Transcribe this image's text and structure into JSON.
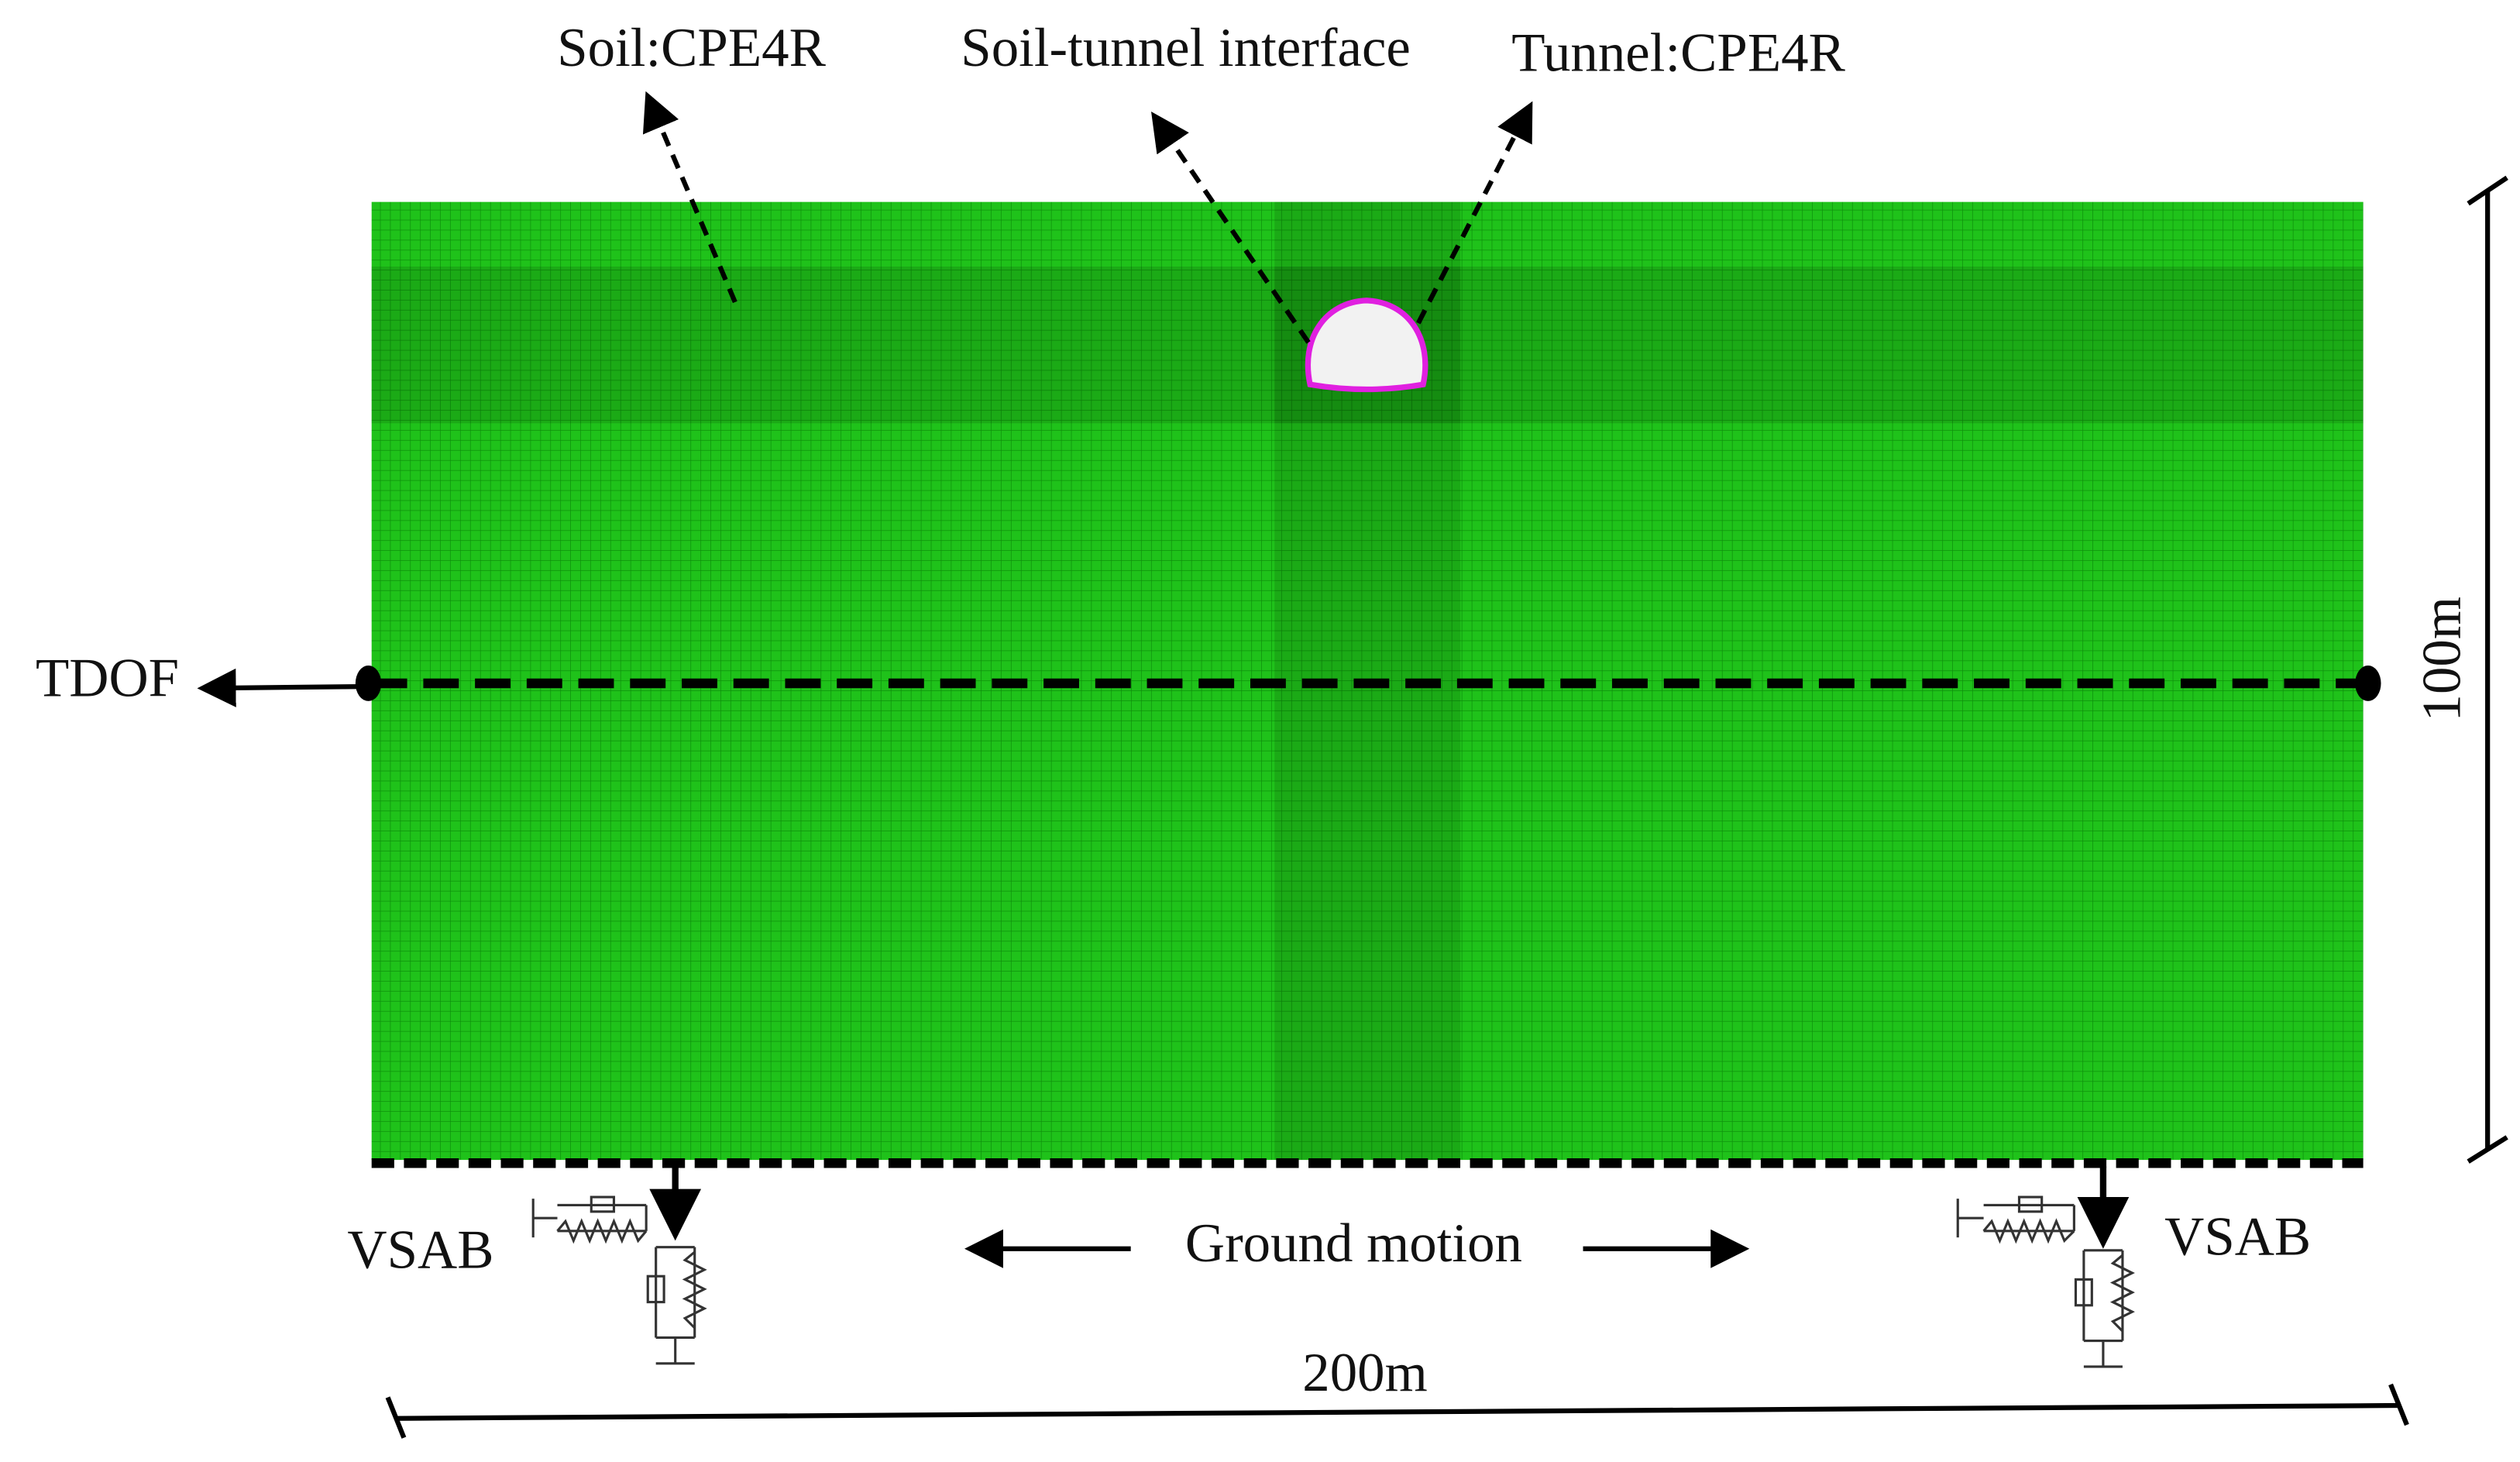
{
  "labels": {
    "soil": "Soil:CPE4R",
    "interface": "Soil-tunnel interface",
    "tunnel": "Tunnel:CPE4R",
    "tdof": "TDOF",
    "height": "100m",
    "vsab_left": "VSAB",
    "vsab_right": "VSAB",
    "ground_motion": "Ground motion",
    "width": "200m"
  }
}
